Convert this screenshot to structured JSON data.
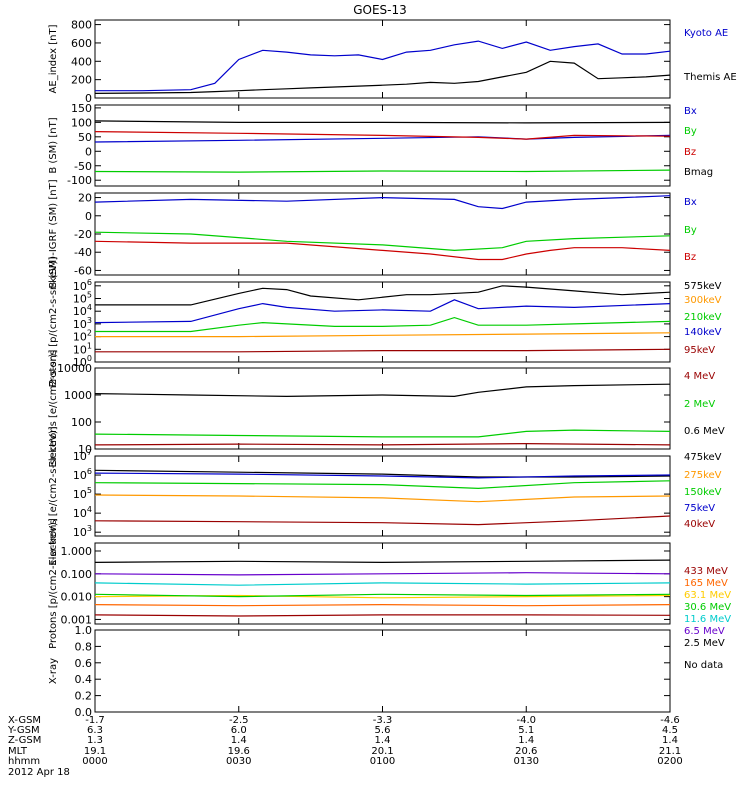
{
  "title": "GOES-13",
  "chart_data": [
    {
      "type": "line",
      "id": "ae",
      "ylabel": "AE_index [nT]",
      "ylim": [
        0,
        850
      ],
      "yticks": [
        "0",
        "200",
        "400",
        "600",
        "800"
      ],
      "ytick_values": [
        0,
        200,
        400,
        600,
        800
      ],
      "xlim": [
        0,
        120
      ],
      "series": [
        {
          "name": "Kyoto AE",
          "color": "#0000cc",
          "x": [
            0,
            10,
            20,
            25,
            30,
            35,
            40,
            45,
            50,
            55,
            60,
            65,
            70,
            75,
            80,
            85,
            90,
            95,
            100,
            105,
            110,
            115,
            120
          ],
          "y": [
            80,
            80,
            90,
            160,
            420,
            520,
            500,
            470,
            460,
            470,
            420,
            500,
            520,
            580,
            620,
            540,
            610,
            520,
            560,
            590,
            480,
            480,
            510
          ]
        },
        {
          "name": "Themis AE",
          "color": "#000000",
          "x": [
            0,
            10,
            20,
            25,
            30,
            35,
            40,
            45,
            50,
            55,
            60,
            65,
            70,
            75,
            80,
            85,
            90,
            95,
            100,
            105,
            110,
            115,
            120
          ],
          "y": [
            50,
            55,
            60,
            70,
            80,
            90,
            100,
            110,
            120,
            130,
            140,
            150,
            170,
            160,
            180,
            230,
            280,
            400,
            380,
            210,
            220,
            230,
            250
          ]
        }
      ],
      "legend": [
        "Kyoto AE",
        "Themis AE"
      ]
    },
    {
      "type": "line",
      "id": "bsm",
      "ylabel": "B (SM) [nT]",
      "ylim": [
        -120,
        160
      ],
      "yticks": [
        "-100",
        "-50",
        "0",
        "50",
        "100",
        "150"
      ],
      "ytick_values": [
        -100,
        -50,
        0,
        50,
        100,
        150
      ],
      "xlim": [
        0,
        120
      ],
      "series": [
        {
          "name": "Bx",
          "color": "#0000cc",
          "x": [
            0,
            30,
            60,
            80,
            90,
            100,
            120
          ],
          "y": [
            32,
            38,
            45,
            50,
            42,
            48,
            55
          ]
        },
        {
          "name": "By",
          "color": "#00cc00",
          "x": [
            0,
            30,
            60,
            90,
            120
          ],
          "y": [
            -70,
            -72,
            -68,
            -70,
            -65
          ]
        },
        {
          "name": "Bz",
          "color": "#cc0000",
          "x": [
            0,
            30,
            60,
            80,
            90,
            100,
            120
          ],
          "y": [
            68,
            62,
            55,
            48,
            42,
            55,
            52
          ]
        },
        {
          "name": "Bmag",
          "color": "#000000",
          "x": [
            0,
            30,
            60,
            90,
            120
          ],
          "y": [
            105,
            100,
            100,
            98,
            100
          ]
        }
      ],
      "legend": [
        "Bx",
        "By",
        "Bz",
        "Bmag"
      ]
    },
    {
      "type": "line",
      "id": "bsm-igrf",
      "ylabel": "B (SM)-IGRF (SM) [nT]",
      "ylim": [
        -65,
        25
      ],
      "yticks": [
        "-60",
        "-40",
        "-20",
        "0",
        "20"
      ],
      "ytick_values": [
        -60,
        -40,
        -20,
        0,
        20
      ],
      "xlim": [
        0,
        120
      ],
      "series": [
        {
          "name": "Bx",
          "color": "#0000cc",
          "x": [
            0,
            20,
            40,
            60,
            75,
            80,
            85,
            90,
            100,
            110,
            120
          ],
          "y": [
            15,
            18,
            16,
            20,
            18,
            10,
            8,
            15,
            18,
            20,
            22
          ]
        },
        {
          "name": "By",
          "color": "#00cc00",
          "x": [
            0,
            20,
            40,
            60,
            75,
            85,
            90,
            100,
            120
          ],
          "y": [
            -18,
            -20,
            -28,
            -32,
            -38,
            -35,
            -28,
            -25,
            -22
          ]
        },
        {
          "name": "Bz",
          "color": "#cc0000",
          "x": [
            0,
            20,
            40,
            60,
            70,
            80,
            85,
            90,
            95,
            100,
            110,
            120
          ],
          "y": [
            -28,
            -30,
            -30,
            -38,
            -42,
            -48,
            -48,
            -42,
            -38,
            -35,
            -35,
            -38
          ]
        }
      ],
      "legend": [
        "Bx",
        "By",
        "Bz"
      ]
    },
    {
      "type": "line",
      "id": "protons-diff",
      "ylabel": "Protons [p/(cm2-s-sr-keV)]",
      "scale": "log",
      "ylim": [
        0,
        6.3
      ],
      "yticks": [
        "10^0",
        "10^1",
        "10^2",
        "10^3",
        "10^4",
        "10^5",
        "10^6"
      ],
      "ytick_values": [
        0,
        1,
        2,
        3,
        4,
        5,
        6
      ],
      "xlim": [
        0,
        120
      ],
      "series": [
        {
          "name": "575keV",
          "color": "#000000",
          "x": [
            0,
            20,
            30,
            35,
            40,
            45,
            55,
            65,
            70,
            80,
            85,
            90,
            100,
            110,
            120
          ],
          "y": [
            4.5,
            4.5,
            5.4,
            5.8,
            5.7,
            5.2,
            4.9,
            5.3,
            5.3,
            5.5,
            6.0,
            5.9,
            5.6,
            5.3,
            5.5
          ]
        },
        {
          "name": "300keV",
          "color": "#ff9900",
          "x": [
            0,
            30,
            60,
            90,
            120
          ],
          "y": [
            2.0,
            2.0,
            2.1,
            2.2,
            2.3
          ]
        },
        {
          "name": "210keV",
          "color": "#00cc00",
          "x": [
            0,
            20,
            30,
            35,
            40,
            50,
            60,
            70,
            75,
            80,
            90,
            100,
            120
          ],
          "y": [
            2.4,
            2.4,
            2.9,
            3.1,
            3.0,
            2.8,
            2.8,
            2.9,
            3.5,
            2.9,
            2.9,
            3.0,
            3.2
          ]
        },
        {
          "name": "140keV",
          "color": "#0000cc",
          "x": [
            0,
            20,
            30,
            35,
            40,
            50,
            60,
            70,
            75,
            80,
            90,
            100,
            120
          ],
          "y": [
            3.1,
            3.2,
            4.2,
            4.6,
            4.3,
            4.0,
            4.1,
            4.0,
            4.9,
            4.2,
            4.4,
            4.3,
            4.6
          ]
        },
        {
          "name": "95keV",
          "color": "#990000",
          "x": [
            0,
            30,
            60,
            90,
            120
          ],
          "y": [
            0.8,
            0.8,
            0.9,
            0.9,
            1.0
          ]
        }
      ],
      "legend": [
        "575keV",
        "300keV",
        "210keV",
        "140keV",
        "95keV"
      ]
    },
    {
      "type": "line",
      "id": "electrons-int",
      "ylabel": "Electrons [e/(cm2-s-sr)]",
      "scale": "log",
      "ylim": [
        1.0,
        4.0
      ],
      "yticks": [
        "10",
        "100",
        "1000",
        "10000"
      ],
      "ytick_values": [
        1,
        2,
        3,
        4
      ],
      "xlim": [
        0,
        120
      ],
      "series": [
        {
          "name": "4 MeV",
          "color": "#990000",
          "x": [
            0,
            30,
            60,
            90,
            120
          ],
          "y": [
            1.15,
            1.18,
            1.15,
            1.2,
            1.15
          ]
        },
        {
          "name": "2 MeV",
          "color": "#00cc00",
          "x": [
            0,
            30,
            60,
            80,
            90,
            100,
            120
          ],
          "y": [
            1.55,
            1.5,
            1.45,
            1.45,
            1.65,
            1.7,
            1.65
          ]
        },
        {
          "name": "0.6 MeV",
          "color": "#000000",
          "x": [
            0,
            20,
            40,
            60,
            75,
            80,
            90,
            100,
            120
          ],
          "y": [
            3.05,
            3.0,
            2.95,
            3.0,
            2.95,
            3.1,
            3.3,
            3.35,
            3.4
          ]
        }
      ],
      "legend": [
        "4 MeV",
        "2 MeV",
        "0.6 MeV"
      ]
    },
    {
      "type": "line",
      "id": "electrons-diff",
      "ylabel": "Electrons [e/(cm2-s-sr-keV)]",
      "scale": "log",
      "ylim": [
        2.8,
        7.0
      ],
      "yticks": [
        "10^3",
        "10^4",
        "10^5",
        "10^6",
        "10^7"
      ],
      "ytick_values": [
        3,
        4,
        5,
        6,
        7
      ],
      "xlim": [
        0,
        120
      ],
      "series": [
        {
          "name": "475keV",
          "color": "#000000",
          "x": [
            0,
            30,
            60,
            80,
            100,
            120
          ],
          "y": [
            6.25,
            6.15,
            6.05,
            5.9,
            5.9,
            5.95
          ]
        },
        {
          "name": "275keV",
          "color": "#ff9900",
          "x": [
            0,
            30,
            60,
            80,
            100,
            120
          ],
          "y": [
            4.95,
            4.9,
            4.8,
            4.6,
            4.85,
            4.9
          ]
        },
        {
          "name": "150keV",
          "color": "#00cc00",
          "x": [
            0,
            30,
            60,
            80,
            100,
            120
          ],
          "y": [
            5.6,
            5.55,
            5.5,
            5.3,
            5.6,
            5.7
          ]
        },
        {
          "name": "75keV",
          "color": "#0000cc",
          "x": [
            0,
            30,
            60,
            80,
            100,
            120
          ],
          "y": [
            6.1,
            6.05,
            5.95,
            5.85,
            5.95,
            6.0
          ]
        },
        {
          "name": "40keV",
          "color": "#990000",
          "x": [
            0,
            30,
            60,
            80,
            100,
            120
          ],
          "y": [
            3.6,
            3.55,
            3.5,
            3.4,
            3.6,
            3.85
          ]
        }
      ],
      "legend": [
        "475keV",
        "275keV",
        "150keV",
        "75keV",
        "40keV"
      ]
    },
    {
      "type": "line",
      "id": "protons-high",
      "ylabel": "Protons [p/(cm2-s-sr-keV)]",
      "scale": "log",
      "ylim": [
        -3.2,
        0.35
      ],
      "yticks": [
        "0.001",
        "0.010",
        "0.100",
        "1.000"
      ],
      "ytick_values": [
        -3,
        -2,
        -1,
        0
      ],
      "xlim": [
        0,
        120
      ],
      "series": [
        {
          "name": "433 MeV",
          "color": "#990000",
          "x": [
            0,
            30,
            60,
            90,
            120
          ],
          "y": [
            -2.8,
            -2.85,
            -2.8,
            -2.8,
            -2.82
          ]
        },
        {
          "name": "165 MeV",
          "color": "#ff6600",
          "x": [
            0,
            30,
            60,
            90,
            120
          ],
          "y": [
            -2.35,
            -2.4,
            -2.35,
            -2.4,
            -2.35
          ]
        },
        {
          "name": "63.1 MeV",
          "color": "#ffcc00",
          "x": [
            0,
            30,
            60,
            90,
            120
          ],
          "y": [
            -2.0,
            -1.95,
            -2.05,
            -2.0,
            -1.95
          ]
        },
        {
          "name": "30.6 MeV",
          "color": "#00cc00",
          "x": [
            0,
            30,
            60,
            90,
            120
          ],
          "y": [
            -1.9,
            -2.0,
            -1.9,
            -1.95,
            -1.9
          ]
        },
        {
          "name": "11.6 MeV",
          "color": "#00cccc",
          "x": [
            0,
            30,
            60,
            90,
            120
          ],
          "y": [
            -1.4,
            -1.5,
            -1.4,
            -1.45,
            -1.4
          ]
        },
        {
          "name": "6.5 MeV",
          "color": "#6600cc",
          "x": [
            0,
            30,
            60,
            90,
            120
          ],
          "y": [
            -1.0,
            -1.05,
            -1.0,
            -0.95,
            -1.0
          ]
        },
        {
          "name": "2.5 MeV",
          "color": "#000000",
          "x": [
            0,
            30,
            60,
            90,
            120
          ],
          "y": [
            -0.5,
            -0.45,
            -0.5,
            -0.45,
            -0.4
          ]
        }
      ],
      "legend": [
        "433 MeV",
        "165 MeV",
        "63.1 MeV",
        "30.6 MeV",
        "11.6 MeV",
        "6.5 MeV",
        "2.5 MeV"
      ]
    },
    {
      "type": "line",
      "id": "xray",
      "ylabel": "X-ray",
      "ylim": [
        0,
        1.0
      ],
      "yticks": [
        "0.0",
        "0.2",
        "0.4",
        "0.6",
        "0.8",
        "1.0"
      ],
      "ytick_values": [
        0,
        0.2,
        0.4,
        0.6,
        0.8,
        1.0
      ],
      "xlim": [
        0,
        120
      ],
      "series": [],
      "legend": [
        "No data"
      ]
    }
  ],
  "x_axis": {
    "row_labels": [
      "X-GSM",
      "Y-GSM",
      "Z-GSM",
      "MLT",
      "hhmm"
    ],
    "date": "2012 Apr 18",
    "tick_values": [
      0,
      30,
      60,
      90,
      120
    ],
    "columns": [
      [
        "-1.7",
        "6.3",
        "1.3",
        "19.1",
        "0000"
      ],
      [
        "-2.5",
        "6.0",
        "1.4",
        "19.6",
        "0030"
      ],
      [
        "-3.3",
        "5.6",
        "1.4",
        "20.1",
        "0100"
      ],
      [
        "-4.0",
        "5.1",
        "1.4",
        "20.6",
        "0130"
      ],
      [
        "-4.6",
        "4.5",
        "1.4",
        "21.1",
        "0200"
      ]
    ]
  }
}
